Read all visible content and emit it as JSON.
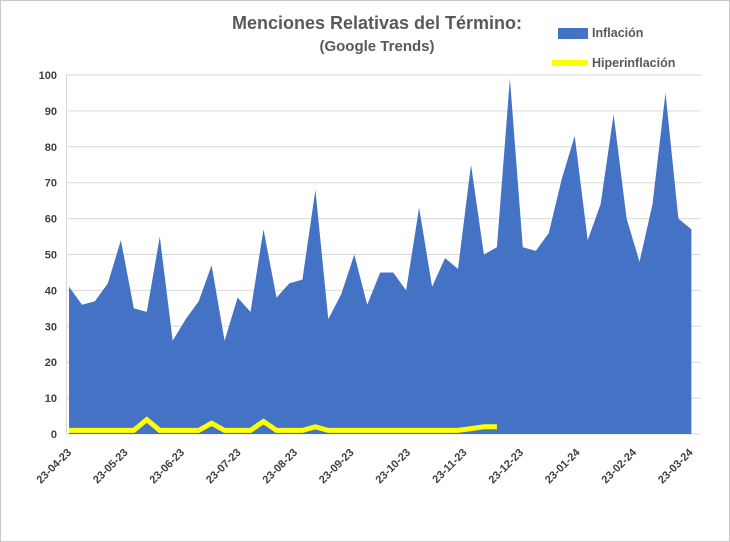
{
  "chart_data": {
    "type": "area",
    "title": "Menciones Relativas del Término:",
    "subtitle": "(Google Trends)",
    "xlabel": "",
    "ylabel": "",
    "x_unit": "week",
    "x_tick_labels": [
      "23-04-23",
      "23-05-23",
      "23-06-23",
      "23-07-23",
      "23-08-23",
      "23-09-23",
      "23-10-23",
      "23-11-23",
      "23-12-23",
      "23-01-24",
      "23-02-24",
      "23-03-24"
    ],
    "y_ticks": [
      0,
      10,
      20,
      30,
      40,
      50,
      60,
      70,
      80,
      90,
      100
    ],
    "ylim": [
      0,
      100
    ],
    "grid": true,
    "legend_position": "top-right",
    "series": [
      {
        "name": "Inflación",
        "type": "area",
        "color": "#4472C4",
        "values": [
          41,
          36,
          37,
          42,
          54,
          35,
          34,
          55,
          26,
          32,
          37,
          47,
          26,
          38,
          34,
          57,
          38,
          42,
          43,
          68,
          32,
          39,
          50,
          36,
          45,
          45,
          40,
          63,
          41,
          49,
          46,
          75,
          50,
          52,
          99,
          52,
          51,
          56,
          71,
          83,
          54,
          64,
          89,
          60,
          48,
          64,
          95,
          60,
          57
        ]
      },
      {
        "name": "Hiperinflación",
        "type": "line",
        "color": "#FFFF00",
        "values": [
          1,
          1,
          1,
          1,
          1,
          1,
          4,
          1,
          1,
          1,
          1,
          3,
          1,
          1,
          1,
          3.5,
          1,
          1,
          1,
          2,
          1,
          1,
          1,
          1,
          1,
          1,
          1,
          1,
          1,
          1,
          1,
          1.5,
          2,
          2
        ]
      }
    ],
    "colors": {
      "grid": "#D9D9D9",
      "axis_text": "#404040",
      "title_text": "#595959",
      "background": "#FFFFFF"
    }
  }
}
